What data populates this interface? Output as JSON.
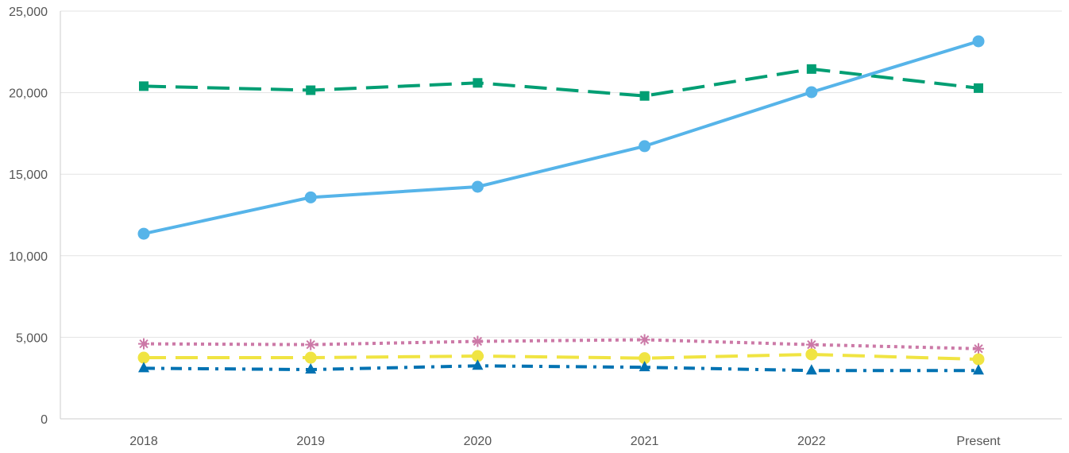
{
  "chart_data": {
    "type": "line",
    "title": "",
    "xlabel": "",
    "ylabel": "",
    "categories": [
      "2018",
      "2019",
      "2020",
      "2021",
      "2022",
      "Present"
    ],
    "ylim": [
      0,
      25000
    ],
    "yticks": [
      0,
      5000,
      10000,
      15000,
      20000,
      25000
    ],
    "ytick_labels": [
      "0",
      "5,000",
      "10,000",
      "15,000",
      "20,000",
      "25,000"
    ],
    "grid": true,
    "legend": "none",
    "series": [
      {
        "values": [
          20400,
          20150,
          20600,
          19800,
          21450,
          20280
        ],
        "color": "#009e73",
        "marker": "square",
        "dash": "long-dash"
      },
      {
        "values": [
          11350,
          13580,
          14230,
          16720,
          20030,
          23150
        ],
        "color": "#56b4e9",
        "marker": "circle",
        "dash": "solid"
      },
      {
        "values": [
          4600,
          4550,
          4750,
          4850,
          4550,
          4300
        ],
        "color": "#cc79a7",
        "marker": "asterisk",
        "dash": "dotted"
      },
      {
        "values": [
          3750,
          3750,
          3850,
          3720,
          3950,
          3650
        ],
        "color": "#f0e442",
        "marker": "circle",
        "dash": "long-dash"
      },
      {
        "values": [
          3100,
          3020,
          3250,
          3160,
          2960,
          2960
        ],
        "color": "#0072b2",
        "marker": "triangle",
        "dash": "dash-dot"
      }
    ]
  }
}
